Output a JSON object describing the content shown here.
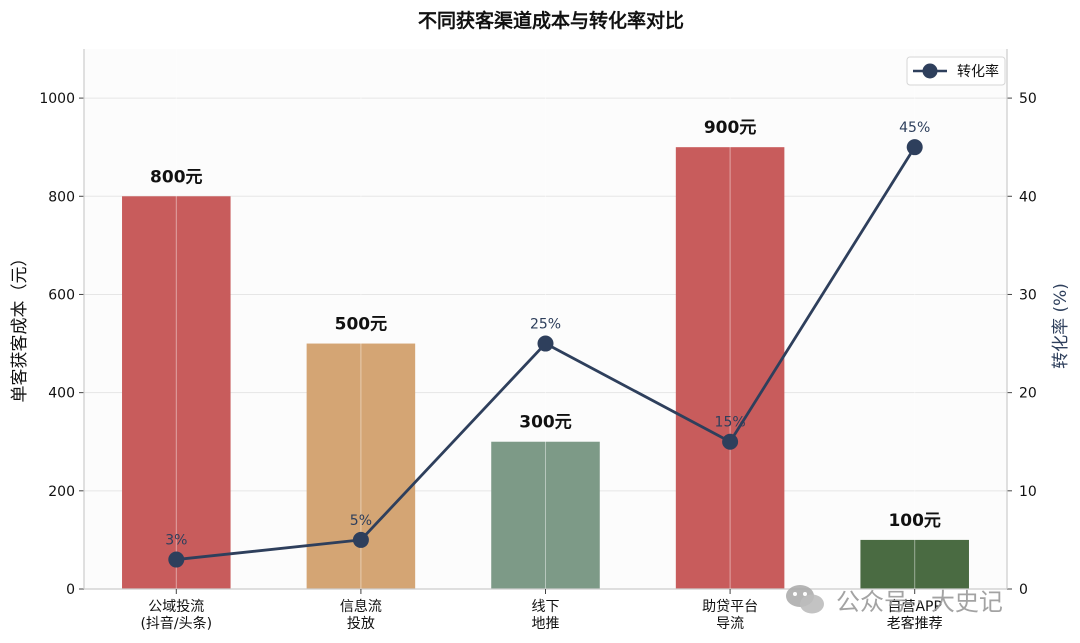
{
  "chart_data": {
    "type": "bar",
    "title": "不同获客渠道成本与转化率对比",
    "categories": [
      [
        "公域投流",
        "(抖音/头条)"
      ],
      [
        "信息流",
        "投放"
      ],
      [
        "线下",
        "地推"
      ],
      [
        "助贷平台",
        "导流"
      ],
      [
        "自营APP",
        "老客推荐"
      ]
    ],
    "bar_series": {
      "values": [
        800,
        500,
        300,
        900,
        100
      ],
      "labels": [
        "800元",
        "500元",
        "300元",
        "900元",
        "100元"
      ],
      "colors": [
        "#c85c5c",
        "#d4a574",
        "#7d9a87",
        "#c85c5c",
        "#4a6b42"
      ]
    },
    "line_series": {
      "name": "转化率",
      "values": [
        3,
        5,
        25,
        15,
        45
      ],
      "labels": [
        "3%",
        "5%",
        "25%",
        "15%",
        "45%"
      ],
      "color": "#2e3f5c"
    },
    "ylabel": "单客获客成本（元）",
    "ylabel_right": "转化率 (%)",
    "ylim": [
      0,
      1100
    ],
    "ylim_right": [
      0,
      55
    ],
    "yticks": [
      0,
      200,
      400,
      600,
      800,
      1000
    ],
    "yticks_right": [
      0,
      10,
      20,
      30,
      40,
      50
    ],
    "grid": true,
    "legend_position": "top-right"
  },
  "watermark": {
    "text": "公众号 · 大史记",
    "icon": "wechat-icon"
  }
}
